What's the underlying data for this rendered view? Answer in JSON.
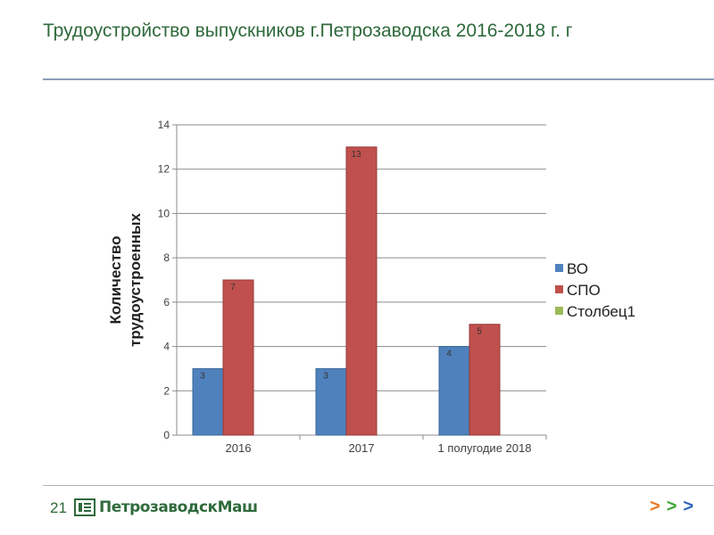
{
  "slide": {
    "title": "Трудоустройство выпускников г.Петрозаводска 2016-2018 г. г",
    "page_number": "21",
    "logo_text": "ПетрозаводскМаш",
    "nav_arrows": [
      ">",
      ">",
      ">"
    ]
  },
  "colors": {
    "title": "#2f6a3c",
    "vo": "#4f81bd",
    "spo": "#c0504d",
    "stolbets1": "#9bbb59"
  },
  "chart_data": {
    "type": "bar",
    "categories": [
      "2016",
      "2017",
      "1 полугодие 2018"
    ],
    "series": [
      {
        "name": "ВО",
        "values": [
          3,
          3,
          4
        ],
        "labels": [
          "3",
          "3",
          "4"
        ]
      },
      {
        "name": "СПО",
        "values": [
          7,
          13,
          5
        ],
        "labels": [
          "7",
          "13",
          "5"
        ]
      },
      {
        "name": "Столбец1",
        "values": [
          null,
          null,
          null
        ],
        "labels": []
      }
    ],
    "title": "",
    "xlabel": "",
    "ylabel": "Количество трудоустроенных",
    "ylabel_lines": [
      "Количество",
      "трудоустроенных"
    ],
    "ylim": [
      0,
      14
    ],
    "yticks": [
      "0",
      "2",
      "4",
      "6",
      "8",
      "10",
      "12",
      "14"
    ],
    "grid": true,
    "legend": "right"
  }
}
